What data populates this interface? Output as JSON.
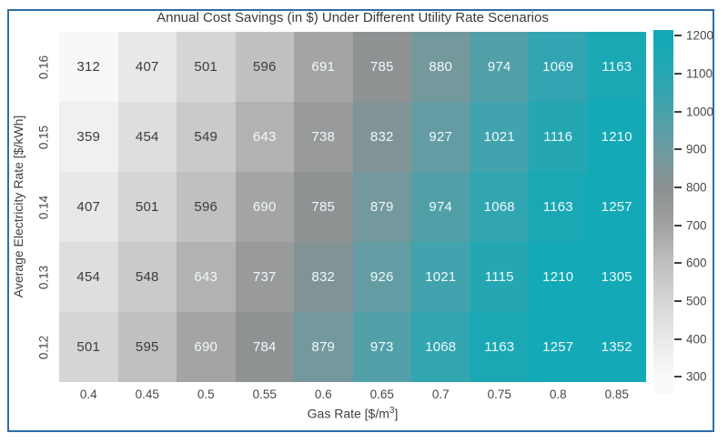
{
  "frame": {
    "border_color": "#2e6da4"
  },
  "chart_data": {
    "type": "heatmap",
    "title": "Annual Cost Savings (in $) Under Different Utility Rate Scenarios",
    "xlabel_prefix": "Gas Rate [$/m",
    "xlabel_sup": "3",
    "xlabel_suffix": "]",
    "ylabel": "Average Electricity Rate [$/kWh]",
    "x_ticks": [
      "0.4",
      "0.45",
      "0.5",
      "0.55",
      "0.6",
      "0.65",
      "0.7",
      "0.75",
      "0.8",
      "0.85"
    ],
    "y_ticks": [
      "0.16",
      "0.15",
      "0.14",
      "0.13",
      "0.12"
    ],
    "rows": [
      [
        312,
        407,
        501,
        596,
        691,
        785,
        880,
        974,
        1069,
        1163
      ],
      [
        359,
        454,
        549,
        643,
        738,
        832,
        927,
        1021,
        1116,
        1210
      ],
      [
        407,
        501,
        596,
        690,
        785,
        879,
        974,
        1068,
        1163,
        1257
      ],
      [
        454,
        548,
        643,
        737,
        832,
        926,
        1021,
        1115,
        1210,
        1305
      ],
      [
        501,
        595,
        690,
        784,
        879,
        973,
        1068,
        1163,
        1257,
        1352
      ]
    ],
    "colorbar": {
      "ticks": [
        1200,
        1100,
        1000,
        900,
        800,
        700,
        600,
        500,
        400,
        300
      ],
      "vmin": 300,
      "vmax": 1200
    },
    "colormap_stops": [
      [
        300,
        "#fafafa"
      ],
      [
        400,
        "#e9e9e9"
      ],
      [
        500,
        "#d5d5d5"
      ],
      [
        600,
        "#bfbfbf"
      ],
      [
        700,
        "#a1a1a1"
      ],
      [
        800,
        "#8b8f90"
      ],
      [
        900,
        "#6d9ba0"
      ],
      [
        1000,
        "#47a2ab"
      ],
      [
        1100,
        "#27a7b3"
      ],
      [
        1200,
        "#13a9b6"
      ]
    ],
    "annotation_text_threshold": 620,
    "colors": {
      "dark_text": "#3c3c3c",
      "light_text": "#f0fafb",
      "accent_teal": "#13a9b6",
      "frame_blue": "#2e6da4"
    },
    "legend_position": "right-colorbar",
    "grid": false
  }
}
